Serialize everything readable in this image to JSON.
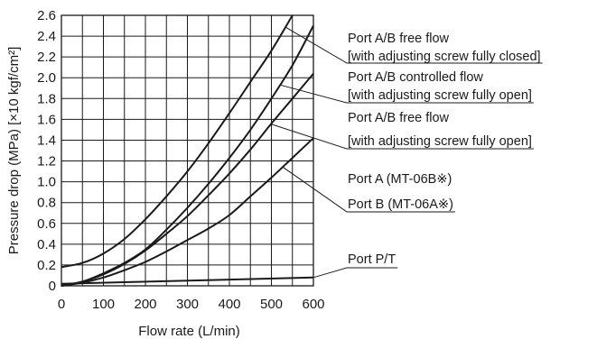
{
  "chart_data": {
    "type": "line",
    "xlabel": "Flow rate (L/min)",
    "ylabel": "Pressure drop (MPa) [×10 kgf/cm²]",
    "xlim": [
      0,
      600
    ],
    "ylim": [
      0,
      2.6
    ],
    "x_ticks": [
      "0",
      "100",
      "200",
      "300",
      "400",
      "500",
      "600"
    ],
    "y_ticks": [
      "0",
      "0.2",
      "0.4",
      "0.6",
      "0.8",
      "1.0",
      "1.2",
      "1.4",
      "1.6",
      "1.8",
      "2.0",
      "2.2",
      "2.4",
      "2.6"
    ],
    "grid": true,
    "series": [
      {
        "label_lines": [
          "Port A/B free flow",
          "[with adjusting screw fully closed]"
        ],
        "x": [
          0,
          50,
          100,
          150,
          200,
          250,
          300,
          350,
          400,
          450,
          500,
          550
        ],
        "y": [
          0.18,
          0.22,
          0.31,
          0.45,
          0.64,
          0.86,
          1.1,
          1.37,
          1.66,
          1.96,
          2.26,
          2.6
        ]
      },
      {
        "label_lines": [
          "Port A/B controlled flow",
          "[with adjusting screw fully open]"
        ],
        "x": [
          0,
          50,
          100,
          150,
          200,
          250,
          300,
          350,
          400,
          450,
          500,
          550,
          600
        ],
        "y": [
          0,
          0.04,
          0.12,
          0.22,
          0.35,
          0.54,
          0.75,
          0.98,
          1.23,
          1.5,
          1.8,
          2.12,
          2.5
        ]
      },
      {
        "label_lines": [
          "Port A/B free flow",
          "[with adjusting screw fully open]"
        ],
        "x": [
          0,
          50,
          100,
          150,
          200,
          250,
          300,
          350,
          400,
          450,
          500,
          550,
          600
        ],
        "y": [
          0,
          0.04,
          0.11,
          0.21,
          0.34,
          0.5,
          0.67,
          0.87,
          1.08,
          1.31,
          1.56,
          1.8,
          2.04
        ]
      },
      {
        "label_lines": [
          "Port A (MT-06B※)",
          "Port B (MT-06A※)"
        ],
        "x": [
          0,
          50,
          100,
          150,
          200,
          250,
          300,
          350,
          400,
          450,
          500,
          550,
          600
        ],
        "y": [
          0,
          0.03,
          0.08,
          0.15,
          0.23,
          0.33,
          0.44,
          0.55,
          0.68,
          0.86,
          1.04,
          1.23,
          1.42
        ]
      },
      {
        "label_lines": [
          "Port P/T"
        ],
        "x": [
          0,
          600
        ],
        "y": [
          0.02,
          0.08
        ]
      }
    ]
  }
}
